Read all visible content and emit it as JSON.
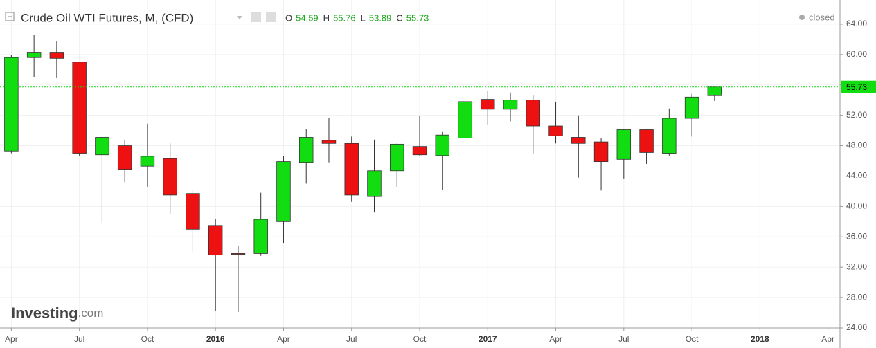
{
  "chart_data": {
    "type": "candlestick",
    "title": "Crude Oil WTI Futures, M, (CFD)",
    "status": "closed",
    "logo": [
      "Investing",
      ".com"
    ],
    "ohlc_labels": [
      "O",
      "H",
      "L",
      "C"
    ],
    "up_color": "#11dd11",
    "down_color": "#ee1111",
    "grid": true,
    "xlim": [
      -0.5,
      36.5
    ],
    "xticks": [
      {
        "value": 0,
        "label": "Apr"
      },
      {
        "value": 3,
        "label": "Jul"
      },
      {
        "value": 6,
        "label": "Oct"
      },
      {
        "value": 9,
        "label": "2016"
      },
      {
        "value": 12,
        "label": "Apr"
      },
      {
        "value": 15,
        "label": "Jul"
      },
      {
        "value": 18,
        "label": "Oct"
      },
      {
        "value": 21,
        "label": "2017"
      },
      {
        "value": 24,
        "label": "Apr"
      },
      {
        "value": 27,
        "label": "Jul"
      },
      {
        "value": 30,
        "label": "Oct"
      },
      {
        "value": 33,
        "label": "2018"
      },
      {
        "value": 36,
        "label": "Apr"
      }
    ],
    "ylim": [
      24,
      67
    ],
    "yticks": [
      {
        "value": 24,
        "label": "24.00"
      },
      {
        "value": 28,
        "label": "28.00"
      },
      {
        "value": 32,
        "label": "32.00"
      },
      {
        "value": 36,
        "label": "36.00"
      },
      {
        "value": 40,
        "label": "40.00"
      },
      {
        "value": 44,
        "label": "44.00"
      },
      {
        "value": 48,
        "label": "48.00"
      },
      {
        "value": 52,
        "label": "52.00"
      },
      {
        "value": 56,
        "label": "56.00"
      },
      {
        "value": 60,
        "label": "60.00"
      },
      {
        "value": 64,
        "label": "64.00"
      }
    ],
    "open": [
      47.3,
      59.6,
      60.3,
      59.0,
      46.8,
      48.0,
      45.3,
      46.3,
      41.7,
      37.5,
      33.8,
      33.8,
      38.0,
      45.8,
      48.7,
      48.3,
      41.3,
      44.7,
      47.9,
      46.7,
      49.0,
      54.1,
      52.8,
      54.0,
      50.6,
      49.1,
      48.5,
      46.2,
      50.1,
      47.0,
      51.6,
      54.59
    ],
    "high": [
      59.9,
      62.6,
      61.8,
      59.0,
      49.3,
      48.8,
      50.9,
      48.3,
      42.2,
      38.3,
      34.8,
      41.8,
      46.6,
      50.2,
      51.7,
      49.2,
      48.8,
      48.3,
      51.9,
      49.8,
      54.5,
      55.2,
      55.0,
      54.6,
      53.8,
      52.0,
      49.0,
      50.2,
      50.2,
      52.9,
      54.8,
      55.76
    ],
    "low": [
      47.0,
      57.0,
      56.9,
      46.7,
      37.8,
      43.2,
      42.6,
      39.0,
      34.0,
      26.2,
      26.1,
      33.5,
      35.2,
      43.0,
      45.8,
      40.6,
      39.2,
      42.5,
      46.6,
      42.2,
      49.0,
      50.8,
      51.2,
      47.0,
      48.3,
      43.8,
      42.1,
      43.6,
      45.6,
      46.7,
      49.2,
      53.89
    ],
    "close": [
      59.6,
      60.3,
      59.5,
      47.0,
      49.1,
      44.9,
      46.6,
      41.5,
      37.0,
      33.6,
      33.7,
      38.3,
      45.9,
      49.1,
      48.3,
      41.5,
      44.7,
      48.2,
      46.8,
      49.4,
      53.8,
      52.8,
      54.0,
      50.6,
      49.3,
      48.3,
      45.9,
      50.1,
      47.1,
      51.6,
      54.4,
      55.73
    ]
  }
}
